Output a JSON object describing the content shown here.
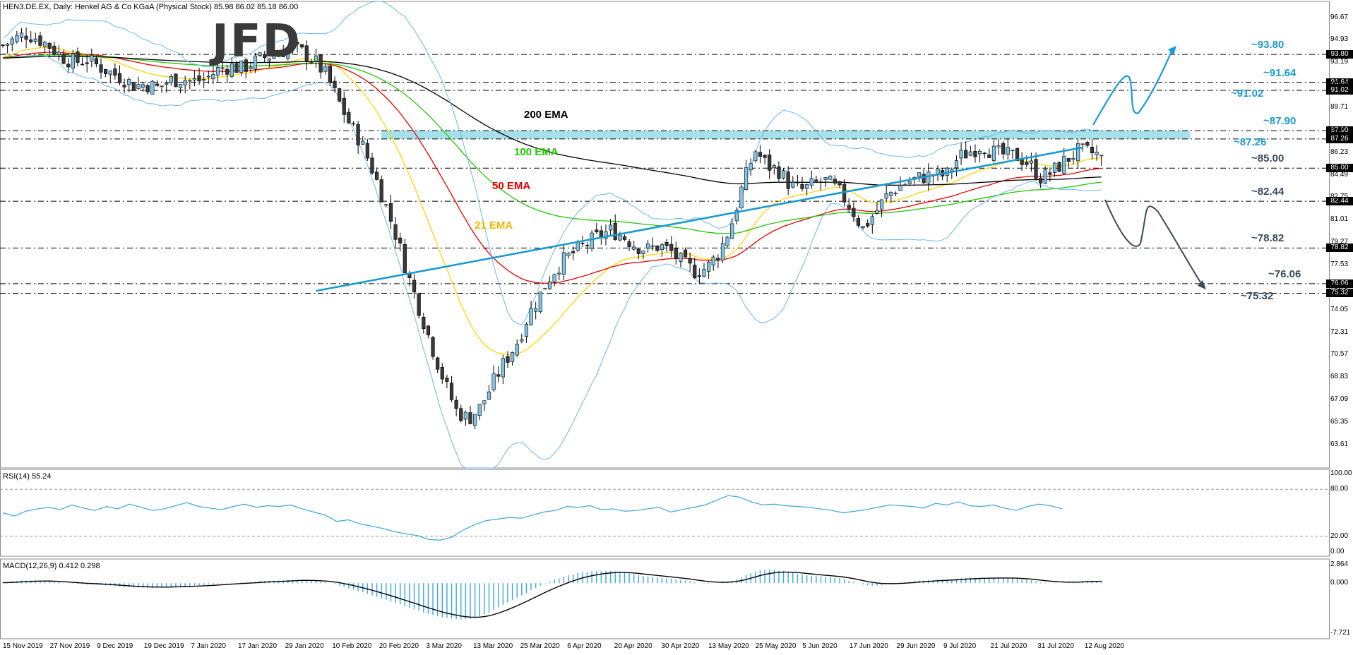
{
  "header": {
    "main": "HEN3.DE.EX, Daily: Henkel AG & Co KGaA (Physical Stock) 85.98 86.02 85.18 86.00",
    "rsi": "RSI(14) 55.24",
    "macd": "MACD(12,26,9) 0.412 0.298"
  },
  "logo": "JFD",
  "colors": {
    "bull": "#7fc3e6",
    "bear": "#3a3a3a",
    "ema21": "#ffd400",
    "ema50": "#e60000",
    "ema100": "#1fc800",
    "ema200": "#000000",
    "bands": "#6bb6e8",
    "accent": "#1a9ad0",
    "zone": "#8fd9e4",
    "rsi": "#3aa6dc",
    "macd_hist": "#3aa6dc"
  },
  "ema_labels": [
    {
      "text": "200 EMA",
      "color": "#000000"
    },
    {
      "text": "100 EMA",
      "color": "#1fc800"
    },
    {
      "text": "50 EMA",
      "color": "#e60000"
    },
    {
      "text": "21 EMA",
      "color": "#f0b400"
    }
  ],
  "chart_data": {
    "type": "candlestick",
    "x_labels": [
      "15 Nov 2019",
      "27 Nov 2019",
      "9 Dec 2019",
      "19 Dec 2019",
      "7 Jan 2020",
      "17 Jan 2020",
      "29 Jan 2020",
      "10 Feb 2020",
      "20 Feb 2020",
      "3 Mar 2020",
      "13 Mar 2020",
      "25 Mar 2020",
      "6 Apr 2020",
      "20 Apr 2020",
      "30 Apr 2020",
      "13 May 2020",
      "25 May 2020",
      "5 Jun 2020",
      "17 Jun 2020",
      "29 Jun 2020",
      "9 Jul 2020",
      "21 Jul 2020",
      "31 Jul 2020",
      "12 Aug 2020"
    ],
    "y_ticks": [
      96.67,
      94.93,
      93.19,
      91.43,
      89.71,
      87.97,
      86.23,
      84.49,
      82.75,
      81.01,
      79.27,
      77.53,
      75.79,
      74.05,
      72.31,
      70.57,
      68.83,
      67.09,
      65.35,
      63.61
    ],
    "y_range": [
      61.8,
      97.9
    ],
    "key_levels": [
      {
        "value": 93.8,
        "label": "~93.80",
        "box": "93.80",
        "color": "#1a9ad0"
      },
      {
        "value": 91.64,
        "label": "~91.64",
        "box": "91.64",
        "color": "#1a9ad0"
      },
      {
        "value": 91.02,
        "label": "~91.02",
        "box": "91.02",
        "color": "#1a9ad0"
      },
      {
        "value": 87.9,
        "label": "~87.90",
        "box": "87.90",
        "color": "#1a9ad0"
      },
      {
        "value": 87.26,
        "label": "~87.26",
        "box": "87.26",
        "color": "#1a9ad0"
      },
      {
        "value": 85.0,
        "label": "~85.00",
        "box": "85.00",
        "color": "#3a4a5a"
      },
      {
        "value": 82.44,
        "label": "~82.44",
        "box": "82.44",
        "color": "#3a4a5a"
      },
      {
        "value": 78.82,
        "label": "~78.82",
        "box": "78.82",
        "color": "#3a4a5a"
      },
      {
        "value": 76.06,
        "label": "~76.06",
        "box": "76.06",
        "color": "#3a4a5a"
      },
      {
        "value": 75.32,
        "label": "~75.32",
        "box": "75.32",
        "color": "#3a4a5a"
      }
    ],
    "resistance_zone": [
      87.26,
      87.9
    ],
    "uptrend_line": [
      [
        67,
        75.5
      ],
      [
        231,
        86.6
      ]
    ],
    "close_key": [
      94.5,
      95.0,
      95.4,
      95.0,
      94.4,
      93.6,
      93.2,
      93.4,
      92.9,
      92.4,
      92.0,
      91.4,
      91.5,
      91.2,
      91.8,
      91.9,
      91.7,
      91.9,
      92.6,
      92.9,
      92.7,
      93.2,
      93.6,
      93.9,
      94.3,
      94.0,
      93.4,
      92.3,
      90.4,
      88.5,
      87.0,
      84.8,
      82.3,
      79.6,
      76.5,
      73.8,
      71.0,
      68.4,
      66.2,
      65.6,
      66.5,
      68.3,
      70.0,
      71.4,
      73.6,
      75.2,
      76.9,
      77.9,
      78.6,
      79.2,
      79.8,
      80.2,
      79.7,
      79.0,
      78.7,
      79.0,
      78.5,
      77.6,
      77.0,
      77.3,
      78.5,
      80.6,
      83.8,
      86.4,
      85.2,
      84.8,
      83.6,
      83.3,
      83.8,
      84.0,
      83.2,
      82.0,
      80.3,
      81.5,
      82.8,
      83.6,
      84.0,
      84.3,
      84.5,
      84.4,
      85.8,
      86.3,
      86.8,
      86.2,
      86.0,
      85.9,
      85.3,
      84.2,
      84.8,
      85.6,
      86.3,
      86.2,
      86.0
    ],
    "rsi": {
      "ticks": [
        100.0,
        80.0,
        20.0,
        0.0
      ],
      "last": 55.24,
      "series": [
        50,
        46,
        52,
        55,
        57,
        54,
        60,
        56,
        53,
        58,
        55,
        61,
        57,
        53,
        55,
        59,
        63,
        58,
        56,
        54,
        58,
        61,
        57,
        59,
        58,
        60,
        55,
        51,
        47,
        39,
        41,
        36,
        33,
        30,
        26,
        23,
        21,
        16,
        15,
        19,
        28,
        35,
        40,
        42,
        44,
        43,
        47,
        51,
        53,
        58,
        57,
        59,
        54,
        55,
        52,
        53,
        55,
        57,
        51,
        54,
        57,
        60,
        66,
        72,
        70,
        64,
        60,
        61,
        59,
        58,
        57,
        55,
        53,
        50,
        52,
        54,
        57,
        60,
        59,
        58,
        56,
        62,
        60,
        64,
        59,
        58,
        60,
        56,
        53,
        58,
        61,
        59,
        55
      ]
    },
    "macd": {
      "ticks": [
        2.864,
        0.0,
        -7.721
      ],
      "value": 0.412,
      "signal": 0.298
    }
  },
  "axes": {
    "label": ""
  }
}
